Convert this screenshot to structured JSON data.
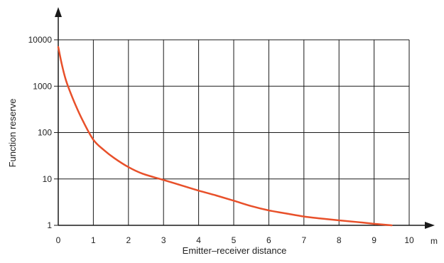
{
  "chart_data": {
    "type": "line",
    "title": "",
    "xlabel": "Emitter–receiver distance",
    "ylabel": "Function reserve",
    "x_unit": "m",
    "xlim": [
      0,
      10
    ],
    "ylim": [
      1,
      10000
    ],
    "y_scale": "log",
    "x_ticks": [
      "0",
      "1",
      "2",
      "3",
      "4",
      "5",
      "6",
      "7",
      "8",
      "9",
      "10"
    ],
    "y_ticks": [
      "1",
      "10",
      "100",
      "1000",
      "10000"
    ],
    "grid": true,
    "colors": {
      "series": "#e8502a",
      "grid": "#1a1a1a",
      "axis": "#1a1a1a"
    },
    "series": [
      {
        "x": [
          0,
          0.1,
          0.2,
          0.3,
          0.5,
          0.7,
          1.0,
          1.3,
          1.6,
          2.0,
          2.4,
          3.0,
          3.5,
          4.0,
          4.5,
          5.0,
          5.5,
          6.0,
          6.5,
          7.0,
          7.5,
          8.0,
          8.5,
          9.0,
          9.3,
          9.5
        ],
        "y": [
          7000,
          3000,
          1500,
          900,
          380,
          180,
          70,
          42,
          28,
          18,
          13,
          9.5,
          7.3,
          5.6,
          4.4,
          3.4,
          2.6,
          2.1,
          1.8,
          1.55,
          1.4,
          1.28,
          1.18,
          1.08,
          1.03,
          1.0
        ]
      }
    ]
  }
}
